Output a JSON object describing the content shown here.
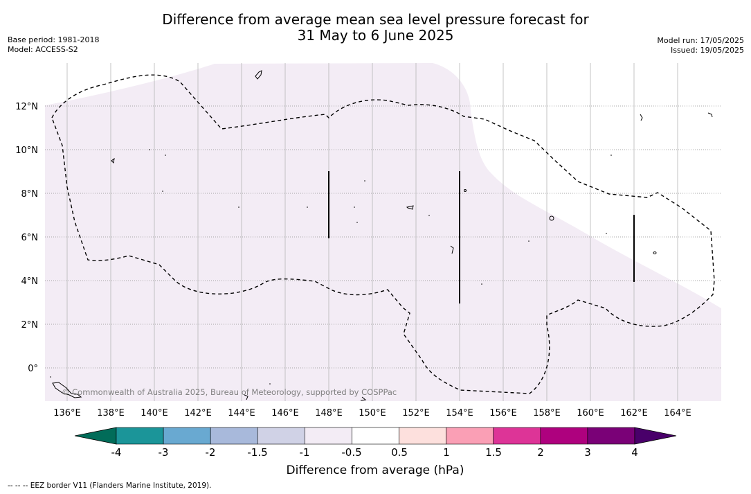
{
  "title": {
    "line1": "Difference from average mean sea level pressure forecast for",
    "line2": "31 May to 6 June 2025"
  },
  "meta_left": {
    "base_period": "Base period: 1981-2018",
    "model": "Model: ACCESS-S2"
  },
  "meta_right": {
    "model_run": "Model run: 17/05/2025",
    "issued": "Issued: 19/05/2025"
  },
  "map": {
    "lon_labels": [
      "136°E",
      "138°E",
      "140°E",
      "142°E",
      "144°E",
      "146°E",
      "148°E",
      "150°E",
      "152°E",
      "154°E",
      "156°E",
      "158°E",
      "160°E",
      "162°E",
      "164°E"
    ],
    "lat_labels": [
      "12°N",
      "10°N",
      "8°N",
      "6°N",
      "4°N",
      "2°N",
      "0°"
    ],
    "copyright": "© Commonwealth of Australia 2025, Bureau of Meteorology, supported by COSPPac",
    "fill_color": "#f3ecf5",
    "eez_line_color": "#000000"
  },
  "colorbar": {
    "tick_labels": [
      "-4",
      "-3",
      "-2",
      "-1.5",
      "-1",
      "-0.5",
      "0.5",
      "1",
      "1.5",
      "2",
      "3",
      "4"
    ],
    "colors": [
      "#1b9599",
      "#69a9d1",
      "#a8b9db",
      "#d0d2e6",
      "#f3ecf5",
      "#ffffff",
      "#fde0dd",
      "#fa9fb5",
      "#dd3497",
      "#ae017e",
      "#7a0177"
    ],
    "under_color": "#016c59",
    "over_color": "#49006a",
    "label": "Difference from average (hPa)"
  },
  "footer": "--  --  -- EEZ border V11 (Flanders Marine Institute, 2019)."
}
